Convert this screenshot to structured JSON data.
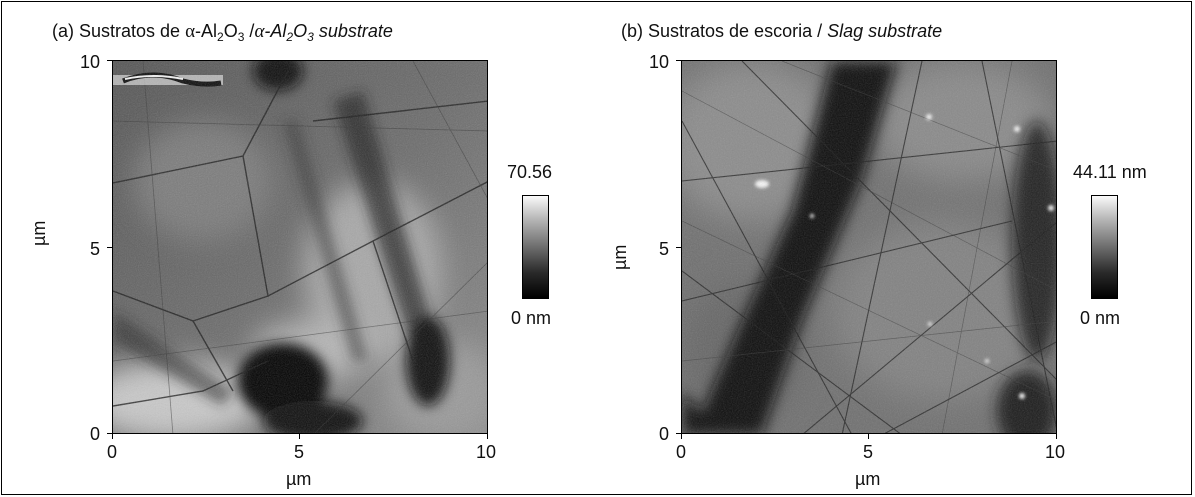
{
  "panel_a": {
    "title_prefix": "(a) Sustratos de ",
    "title_alpha": "α",
    "title_mid": "-Al",
    "title_sub1": "2",
    "title_O": "O",
    "title_sub2": "3",
    "title_sep": " /",
    "title_alpha2": "α",
    "title_ital": "-Al",
    "title_ital_sub1": "2",
    "title_ital_O": "O",
    "title_ital_sub2": "3",
    "title_ital_end": " substrate",
    "x_ticks": [
      "0",
      "5",
      "10"
    ],
    "y_ticks": [
      "0",
      "5",
      "10"
    ],
    "xlabel": "µm",
    "ylabel": "µm",
    "colorbar_max": "70.56",
    "colorbar_min": "0 nm"
  },
  "panel_b": {
    "title_prefix": "(b) Sustratos de escoria / ",
    "title_ital": "Slag substrate",
    "x_ticks": [
      "0",
      "5",
      "10"
    ],
    "y_ticks": [
      "0",
      "5",
      "10"
    ],
    "xlabel": "µm",
    "ylabel": "µm",
    "colorbar_max": "44.11 nm",
    "colorbar_min": "0 nm"
  }
}
